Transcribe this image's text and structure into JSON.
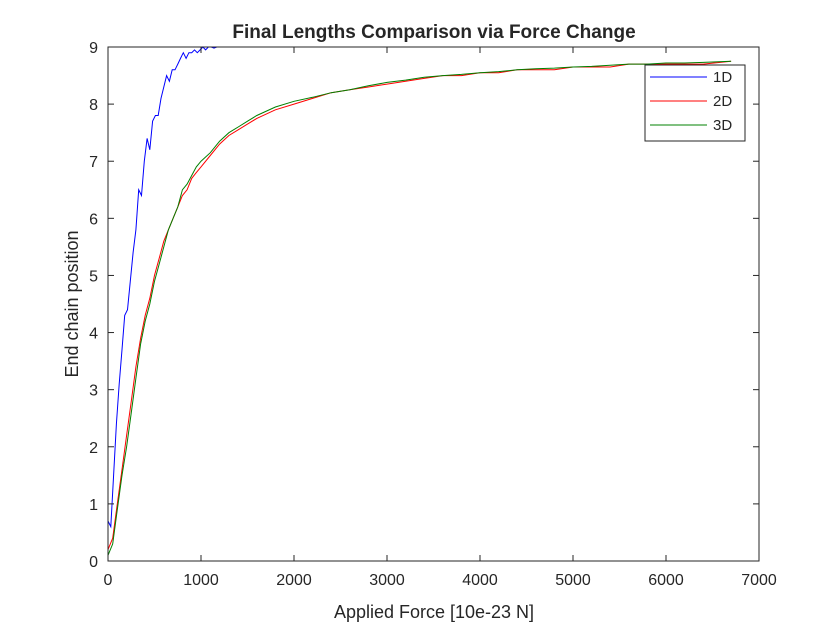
{
  "chart_data": {
    "type": "line",
    "title": "Final Lengths Comparison via Force Change",
    "xlabel": "Applied Force [10e-23 N]",
    "ylabel": "End chain position",
    "xlim": [
      0,
      7000
    ],
    "ylim": [
      0,
      9
    ],
    "xticks": [
      0,
      1000,
      2000,
      3000,
      4000,
      5000,
      6000,
      7000
    ],
    "yticks": [
      0,
      1,
      2,
      3,
      4,
      5,
      6,
      7,
      8,
      9
    ],
    "grid": false,
    "legend_position": "top-right",
    "series": [
      {
        "name": "1D",
        "color": "#0000ff",
        "x": [
          0,
          30,
          60,
          90,
          120,
          150,
          180,
          210,
          240,
          270,
          300,
          330,
          360,
          390,
          420,
          450,
          480,
          510,
          540,
          570,
          600,
          630,
          660,
          690,
          720,
          750,
          780,
          810,
          840,
          870,
          900,
          930,
          960,
          990,
          1020,
          1050,
          1080,
          1110,
          1140,
          1170,
          1200,
          1250,
          1300,
          1400,
          1500,
          1600,
          1700,
          1800,
          2000,
          2500,
          3000,
          4000,
          5000,
          6000,
          6700
        ],
        "values": [
          0.7,
          0.6,
          1.5,
          2.4,
          3.1,
          3.7,
          4.3,
          4.4,
          4.9,
          5.4,
          5.8,
          6.5,
          6.4,
          7.0,
          7.4,
          7.2,
          7.7,
          7.8,
          7.8,
          8.1,
          8.3,
          8.5,
          8.4,
          8.6,
          8.6,
          8.7,
          8.8,
          8.9,
          8.8,
          8.9,
          8.9,
          8.95,
          8.9,
          8.95,
          9.0,
          8.95,
          9.0,
          9.0,
          8.98,
          9.0,
          9.0,
          9.0,
          9.0,
          9.0,
          9.0,
          9.0,
          9.0,
          9.0,
          9.0,
          9.0,
          9.0,
          9.0,
          9.0,
          9.0,
          9.0
        ]
      },
      {
        "name": "2D",
        "color": "#ff0000",
        "x": [
          0,
          50,
          100,
          150,
          200,
          250,
          300,
          350,
          400,
          450,
          500,
          550,
          600,
          650,
          700,
          750,
          800,
          850,
          900,
          950,
          1000,
          1100,
          1200,
          1300,
          1400,
          1500,
          1600,
          1800,
          2000,
          2200,
          2400,
          2600,
          2800,
          3000,
          3200,
          3400,
          3600,
          3800,
          4000,
          4200,
          4400,
          4600,
          4800,
          5000,
          5200,
          5400,
          5600,
          5800,
          6000,
          6200,
          6400,
          6700
        ],
        "values": [
          0.2,
          0.4,
          1.0,
          1.6,
          2.2,
          2.8,
          3.4,
          3.9,
          4.3,
          4.6,
          5.0,
          5.3,
          5.6,
          5.8,
          6.0,
          6.2,
          6.4,
          6.5,
          6.7,
          6.8,
          6.9,
          7.1,
          7.3,
          7.45,
          7.55,
          7.65,
          7.75,
          7.9,
          8.0,
          8.1,
          8.2,
          8.25,
          8.3,
          8.35,
          8.4,
          8.45,
          8.5,
          8.5,
          8.55,
          8.55,
          8.6,
          8.6,
          8.6,
          8.65,
          8.65,
          8.65,
          8.7,
          8.7,
          8.7,
          8.7,
          8.7,
          8.75
        ]
      },
      {
        "name": "3D",
        "color": "#008000",
        "x": [
          0,
          50,
          100,
          150,
          200,
          250,
          300,
          350,
          400,
          450,
          500,
          550,
          600,
          650,
          700,
          750,
          800,
          850,
          900,
          950,
          1000,
          1100,
          1200,
          1300,
          1400,
          1500,
          1600,
          1800,
          2000,
          2200,
          2400,
          2600,
          2800,
          3000,
          3200,
          3400,
          3600,
          3800,
          4000,
          4200,
          4400,
          4600,
          4800,
          5000,
          5200,
          5400,
          5600,
          5800,
          6000,
          6200,
          6400,
          6700
        ],
        "values": [
          0.1,
          0.3,
          0.9,
          1.5,
          2.0,
          2.6,
          3.2,
          3.8,
          4.2,
          4.5,
          4.9,
          5.2,
          5.5,
          5.8,
          6.0,
          6.2,
          6.5,
          6.6,
          6.75,
          6.9,
          7.0,
          7.15,
          7.35,
          7.5,
          7.6,
          7.7,
          7.8,
          7.95,
          8.05,
          8.12,
          8.2,
          8.25,
          8.32,
          8.38,
          8.42,
          8.47,
          8.5,
          8.52,
          8.55,
          8.57,
          8.6,
          8.62,
          8.63,
          8.65,
          8.66,
          8.68,
          8.7,
          8.7,
          8.72,
          8.72,
          8.73,
          8.75
        ]
      }
    ]
  }
}
